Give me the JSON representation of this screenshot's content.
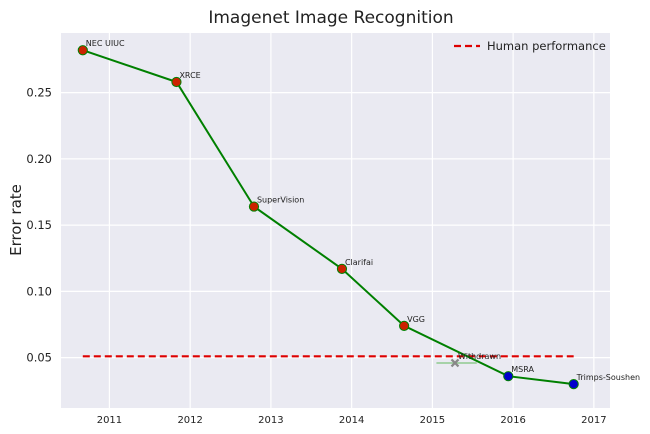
{
  "chart_data": {
    "type": "line",
    "title": "Imagenet Image Recognition",
    "xlabel": "",
    "ylabel": "Error rate",
    "xlim": [
      2010.4,
      2017.2
    ],
    "ylim": [
      0.012,
      0.295
    ],
    "x_ticks": [
      2011,
      2012,
      2013,
      2014,
      2015,
      2016,
      2017
    ],
    "y_ticks": [
      0.05,
      0.1,
      0.15,
      0.2,
      0.25
    ],
    "y_tick_labels": [
      "0.05",
      "0.10",
      "0.15",
      "0.20",
      "0.25"
    ],
    "grid": true,
    "legend": {
      "placement": "top-right",
      "entries": [
        "Human performance"
      ]
    },
    "series": [
      {
        "color": "#008000",
        "points": [
          {
            "x": 2010.67,
            "y": 0.282,
            "label": "NEC UIUC",
            "marker": "#cc2200"
          },
          {
            "x": 2011.83,
            "y": 0.258,
            "label": "XRCE",
            "marker": "#cc2200"
          },
          {
            "x": 2012.79,
            "y": 0.164,
            "label": "SuperVision",
            "marker": "#cc2200"
          },
          {
            "x": 2013.88,
            "y": 0.117,
            "label": "Clarifai",
            "marker": "#cc2200"
          },
          {
            "x": 2014.65,
            "y": 0.074,
            "label": "VGG",
            "marker": "#cc2200"
          },
          {
            "x": 2015.94,
            "y": 0.036,
            "label": "MSRA",
            "marker": "#0000cc"
          },
          {
            "x": 2016.75,
            "y": 0.03,
            "label": "Trimps-Soushen",
            "marker": "#0000cc"
          }
        ]
      }
    ],
    "withdrawn": {
      "x": 2015.28,
      "y": 0.046,
      "xerr": [
        2015.05,
        2015.55
      ],
      "label": "Withdrawn",
      "color": "#888888"
    },
    "human_performance": {
      "y": 0.051,
      "x_start": 2010.67,
      "x_end": 2016.75,
      "color": "#dd0000",
      "label": "Human performance"
    }
  },
  "colors": {
    "background": "#eaeaf2",
    "grid": "#ffffff",
    "line": "#008000",
    "human": "#dd0000"
  }
}
